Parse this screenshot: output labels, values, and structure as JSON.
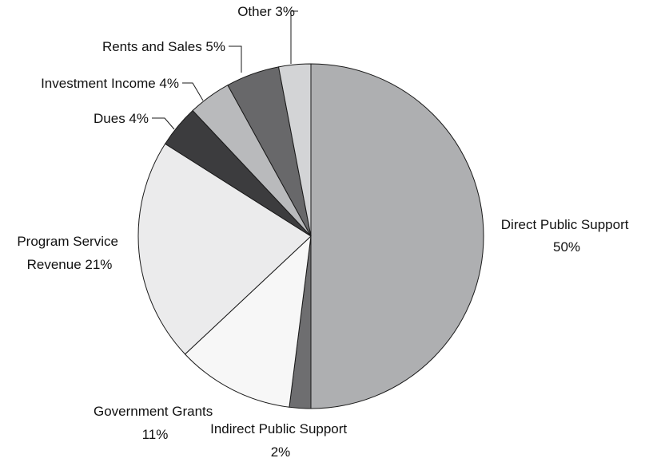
{
  "chart_data": {
    "type": "pie",
    "title": "",
    "start_angle_deg": 0,
    "direction": "clockwise",
    "slices": [
      {
        "name": "Direct Public Support",
        "value": 50,
        "value_label": "50%",
        "color": "#aeafb1"
      },
      {
        "name": "Indirect Public Support",
        "value": 2,
        "value_label": "2%",
        "color": "#6e6e70"
      },
      {
        "name": "Government Grants",
        "value": 11,
        "value_label": "11%",
        "color": "#f7f7f7"
      },
      {
        "name": "Program Service Revenue",
        "value": 21,
        "value_label": "21%",
        "color": "#ebebec"
      },
      {
        "name": "Dues",
        "value": 4,
        "value_label": "4%",
        "color": "#3c3c3e"
      },
      {
        "name": "Investment Income",
        "value": 4,
        "value_label": "4%",
        "color": "#b9babc"
      },
      {
        "name": "Rents and Sales",
        "value": 5,
        "value_label": "5%",
        "color": "#68686a"
      },
      {
        "name": "Other",
        "value": 3,
        "value_label": "3%",
        "color": "#d3d4d6"
      }
    ],
    "labels": {
      "direct": [
        "Direct Public Support",
        "50%"
      ],
      "indirect": [
        "Indirect Public Support",
        "2%"
      ],
      "government": [
        "Government Grants",
        "11%"
      ],
      "program": [
        "Program Service",
        "Revenue 21%"
      ],
      "dues": "Dues 4%",
      "investment": "Investment Income 4%",
      "rents": "Rents and Sales 5%",
      "other": "Other 3%"
    }
  }
}
